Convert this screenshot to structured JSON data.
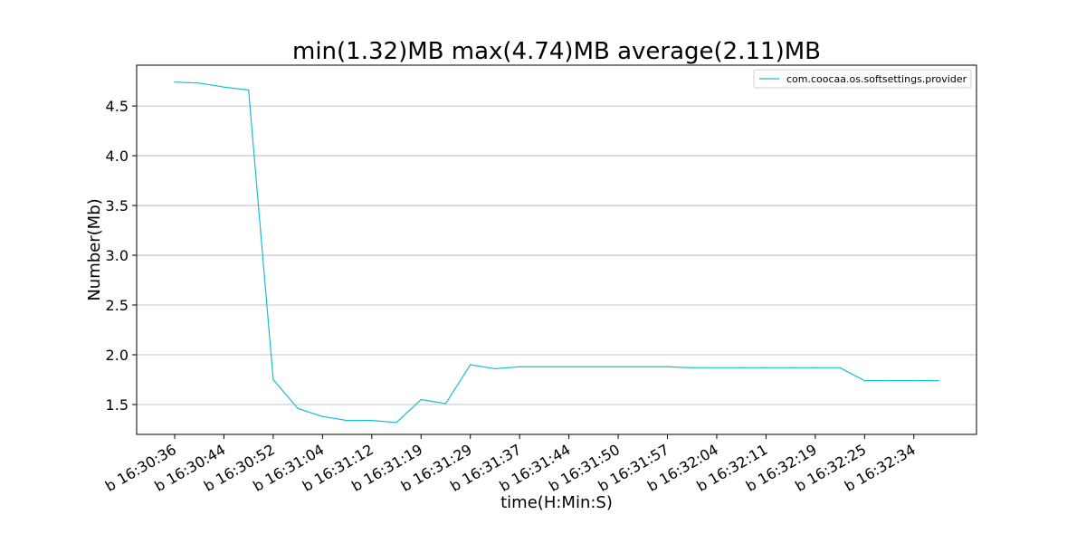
{
  "chart_data": {
    "type": "line",
    "title": "min(1.32)MB max(4.74)MB average(2.11)MB",
    "xlabel": "time(H:Min:S)",
    "ylabel": "Number(Mb)",
    "x_tick_labels": [
      "b 16:30:36",
      "b 16:30:44",
      "b 16:30:52",
      "b 16:31:04",
      "b 16:31:12",
      "b 16:31:19",
      "b 16:31:29",
      "b 16:31:37",
      "b 16:31:44",
      "b 16:31:50",
      "b 16:31:57",
      "b 16:32:04",
      "b 16:32:11",
      "b 16:32:19",
      "b 16:32:25",
      "b 16:32:34"
    ],
    "y_ticks": [
      1.5,
      2.0,
      2.5,
      3.0,
      3.5,
      4.0,
      4.5
    ],
    "y_tick_labels": [
      "1.5",
      "2.0",
      "2.5",
      "3.0",
      "3.5",
      "4.0",
      "4.5"
    ],
    "ylim": [
      1.2,
      4.91
    ],
    "grid": "horizontal",
    "legend_position": "top-right",
    "series": [
      {
        "name": "com.coocaa.os.softsettings.provider",
        "color": "#17becf",
        "values": [
          4.74,
          4.73,
          4.69,
          4.66,
          1.75,
          1.46,
          1.38,
          1.34,
          1.34,
          1.32,
          1.55,
          1.51,
          1.9,
          1.86,
          1.88,
          1.88,
          1.88,
          1.88,
          1.88,
          1.88,
          1.88,
          1.87,
          1.87,
          1.87,
          1.87,
          1.87,
          1.87,
          1.87,
          1.74,
          1.74,
          1.74,
          1.74
        ]
      }
    ]
  }
}
